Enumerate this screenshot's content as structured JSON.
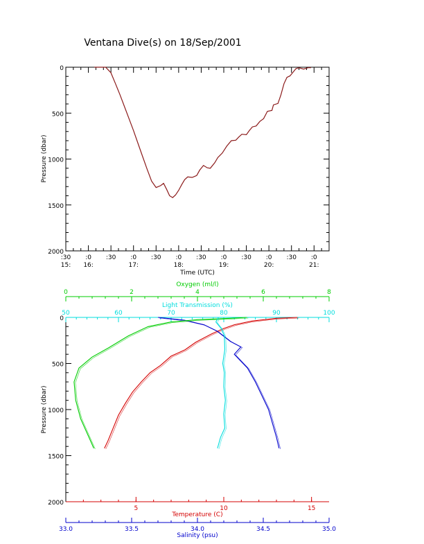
{
  "title": "Ventana Dive(s) on 18/Sep/2001",
  "colors": {
    "axis": "#000000",
    "trace": "#8b1a1a",
    "temperature": "#d40000",
    "salinity": "#0000cc",
    "oxygen": "#00cc00",
    "transmission": "#00dddd"
  },
  "chart_data": [
    {
      "type": "line",
      "xlabel": "Time (UTC)",
      "ylabel": "Pressure (dbar)",
      "y_inverted": true,
      "ylim": [
        0,
        2000
      ],
      "yticks": [
        "0",
        "500",
        "1000",
        "1500",
        "2000"
      ],
      "xlim": [
        "15:30",
        "21:20"
      ],
      "xticks": [
        {
          "t": "15:30",
          "top": ":30",
          "bottom": "15:"
        },
        {
          "t": "16:00",
          "top": ":0",
          "bottom": "16:"
        },
        {
          "t": "16:30",
          "top": ":30",
          "bottom": ""
        },
        {
          "t": "17:00",
          "top": ":0",
          "bottom": "17:"
        },
        {
          "t": "17:30",
          "top": ":30",
          "bottom": ""
        },
        {
          "t": "18:00",
          "top": ":0",
          "bottom": "18:"
        },
        {
          "t": "18:30",
          "top": ":30",
          "bottom": ""
        },
        {
          "t": "19:00",
          "top": ":0",
          "bottom": "19:"
        },
        {
          "t": "19:30",
          "top": ":30",
          "bottom": ""
        },
        {
          "t": "20:00",
          "top": ":0",
          "bottom": "20:"
        },
        {
          "t": "20:30",
          "top": ":30",
          "bottom": ""
        },
        {
          "t": "21:00",
          "top": ":0",
          "bottom": "21:"
        }
      ],
      "series": [
        {
          "points": [
            [
              "16:08",
              0
            ],
            [
              "16:23",
              0
            ],
            [
              "16:30",
              60
            ],
            [
              "16:36",
              180
            ],
            [
              "16:42",
              300
            ],
            [
              "16:48",
              430
            ],
            [
              "16:54",
              560
            ],
            [
              "17:00",
              690
            ],
            [
              "17:06",
              830
            ],
            [
              "17:12",
              970
            ],
            [
              "17:18",
              1110
            ],
            [
              "17:24",
              1240
            ],
            [
              "17:30",
              1310
            ],
            [
              "17:36",
              1290
            ],
            [
              "17:40",
              1265
            ],
            [
              "17:44",
              1330
            ],
            [
              "17:48",
              1400
            ],
            [
              "17:52",
              1420
            ],
            [
              "17:56",
              1390
            ],
            [
              "18:00",
              1340
            ],
            [
              "18:04",
              1280
            ],
            [
              "18:08",
              1225
            ],
            [
              "18:12",
              1195
            ],
            [
              "18:18",
              1200
            ],
            [
              "18:24",
              1180
            ],
            [
              "18:28",
              1120
            ],
            [
              "18:33",
              1070
            ],
            [
              "18:38",
              1095
            ],
            [
              "18:42",
              1100
            ],
            [
              "18:48",
              1040
            ],
            [
              "18:52",
              985
            ],
            [
              "18:58",
              935
            ],
            [
              "19:04",
              860
            ],
            [
              "19:10",
              800
            ],
            [
              "19:16",
              795
            ],
            [
              "19:20",
              760
            ],
            [
              "19:24",
              730
            ],
            [
              "19:30",
              735
            ],
            [
              "19:34",
              690
            ],
            [
              "19:38",
              650
            ],
            [
              "19:43",
              640
            ],
            [
              "19:48",
              590
            ],
            [
              "19:53",
              560
            ],
            [
              "19:58",
              480
            ],
            [
              "20:04",
              470
            ],
            [
              "20:06",
              410
            ],
            [
              "20:12",
              395
            ],
            [
              "20:16",
              300
            ],
            [
              "20:20",
              180
            ],
            [
              "20:24",
              110
            ],
            [
              "20:28",
              95
            ],
            [
              "20:32",
              55
            ],
            [
              "20:36",
              15
            ],
            [
              "20:40",
              5
            ],
            [
              "20:46",
              20
            ],
            [
              "20:52",
              5
            ],
            [
              "20:56",
              5
            ]
          ]
        }
      ]
    },
    {
      "type": "line",
      "ylabel": "Pressure (dbar)",
      "y_inverted": true,
      "ylim": [
        0,
        2000
      ],
      "yticks": [
        "0",
        "500",
        "1000",
        "1500",
        "2000"
      ],
      "axes": {
        "oxygen": {
          "label": "Oxygen (ml/l)",
          "lim": [
            0,
            8
          ],
          "ticks": [
            "0",
            "2",
            "4",
            "6",
            "8"
          ],
          "position": "top"
        },
        "transmission": {
          "label": "Light Transmission (%)",
          "lim": [
            50,
            100
          ],
          "ticks": [
            "50",
            "60",
            "70",
            "80",
            "90",
            "100"
          ],
          "position": "top"
        },
        "temperature": {
          "label": "Temperature (C)",
          "lim": [
            1,
            16
          ],
          "ticks": [
            "5",
            "10",
            "15"
          ],
          "position": "bottom"
        },
        "salinity": {
          "label": "Salinity (psu)",
          "lim": [
            33.0,
            35.0
          ],
          "ticks": [
            "33.0",
            "33.5",
            "34.0",
            "34.5",
            "35.0"
          ],
          "position": "bottom"
        }
      },
      "series": [
        {
          "axis": "temperature",
          "points": [
            [
              14.2,
              0
            ],
            [
              13.0,
              10
            ],
            [
              11.6,
              40
            ],
            [
              10.6,
              80
            ],
            [
              10.0,
              120
            ],
            [
              9.3,
              180
            ],
            [
              8.4,
              270
            ],
            [
              7.8,
              350
            ],
            [
              7.0,
              420
            ],
            [
              6.4,
              520
            ],
            [
              5.8,
              600
            ],
            [
              5.3,
              700
            ],
            [
              4.8,
              810
            ],
            [
              4.4,
              930
            ],
            [
              4.0,
              1060
            ],
            [
              3.7,
              1200
            ],
            [
              3.4,
              1340
            ],
            [
              3.2,
              1420
            ]
          ]
        },
        {
          "axis": "salinity",
          "points": [
            [
              33.7,
              0
            ],
            [
              33.9,
              30
            ],
            [
              34.05,
              80
            ],
            [
              34.15,
              150
            ],
            [
              34.25,
              260
            ],
            [
              34.33,
              320
            ],
            [
              34.28,
              400
            ],
            [
              34.38,
              550
            ],
            [
              34.44,
              700
            ],
            [
              34.49,
              850
            ],
            [
              34.54,
              1000
            ],
            [
              34.57,
              1150
            ],
            [
              34.6,
              1300
            ],
            [
              34.62,
              1420
            ]
          ]
        },
        {
          "axis": "oxygen",
          "points": [
            [
              5.5,
              0
            ],
            [
              5.0,
              10
            ],
            [
              4.0,
              25
            ],
            [
              3.2,
              50
            ],
            [
              2.5,
              100
            ],
            [
              1.9,
              200
            ],
            [
              1.3,
              330
            ],
            [
              0.8,
              430
            ],
            [
              0.4,
              550
            ],
            [
              0.25,
              700
            ],
            [
              0.3,
              900
            ],
            [
              0.45,
              1100
            ],
            [
              0.7,
              1300
            ],
            [
              0.85,
              1420
            ]
          ]
        },
        {
          "axis": "transmission",
          "points": [
            [
              79,
              0
            ],
            [
              78.5,
              50
            ],
            [
              79.5,
              120
            ],
            [
              80.1,
              200
            ],
            [
              80.2,
              350
            ],
            [
              79.8,
              500
            ],
            [
              80.1,
              600
            ],
            [
              80.0,
              750
            ],
            [
              80.3,
              900
            ],
            [
              80.0,
              1050
            ],
            [
              80.2,
              1200
            ],
            [
              79.4,
              1300
            ],
            [
              78.8,
              1420
            ]
          ]
        }
      ]
    }
  ]
}
